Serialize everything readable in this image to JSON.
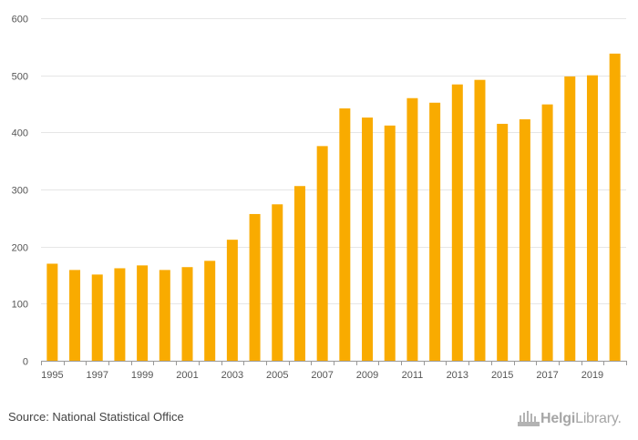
{
  "chart_data": {
    "type": "bar",
    "categories": [
      "1995",
      "1996",
      "1997",
      "1998",
      "1999",
      "2000",
      "2001",
      "2002",
      "2003",
      "2004",
      "2005",
      "2006",
      "2007",
      "2008",
      "2009",
      "2010",
      "2011",
      "2012",
      "2013",
      "2014",
      "2015",
      "2016",
      "2017",
      "2018",
      "2019",
      "2020"
    ],
    "values": [
      170,
      159,
      151,
      162,
      167,
      159,
      164,
      175,
      212,
      257,
      274,
      306,
      376,
      442,
      426,
      412,
      460,
      452,
      484,
      492,
      415,
      423,
      449,
      498,
      500,
      538
    ],
    "x_tick_labels": [
      "1995",
      "1997",
      "1999",
      "2001",
      "2003",
      "2005",
      "2007",
      "2009",
      "2011",
      "2013",
      "2015",
      "2017",
      "2019"
    ],
    "y_ticks": [
      0,
      100,
      200,
      300,
      400,
      500,
      600
    ],
    "ylim": [
      0,
      600
    ],
    "title": "",
    "xlabel": "",
    "ylabel": "",
    "grid": true,
    "bar_color": "#f9ab00",
    "grid_color": "#e6e6e6"
  },
  "footer": {
    "source": "Source: National Statistical Office",
    "logo_text_a": "Helgi",
    "logo_text_b": "Library",
    "logo_dot": "."
  }
}
